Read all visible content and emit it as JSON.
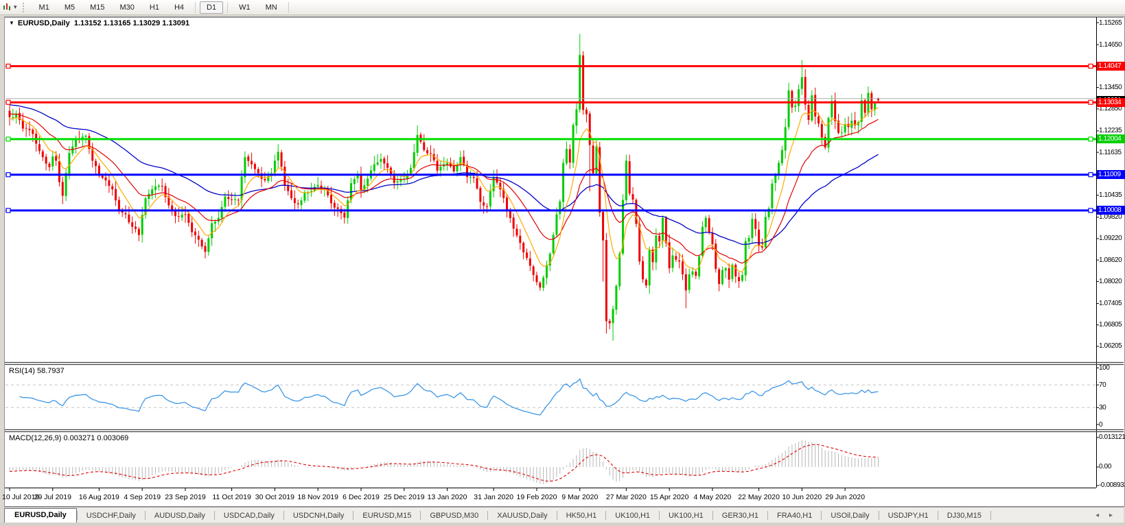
{
  "toolbar": {
    "timeframes": [
      "M1",
      "M5",
      "M15",
      "M30",
      "H1",
      "H4",
      "D1",
      "W1",
      "MN"
    ],
    "active_timeframe": "D1",
    "chart_icon": "chart-type-icon",
    "caret_icon": "dropdown-caret-icon"
  },
  "chart": {
    "symbol": "EURUSD,Daily",
    "ohlc_text": "1.13152 1.13165 1.13029 1.13091",
    "collapse_triangle": "▼"
  },
  "rsi": {
    "label": "RSI(14)",
    "value": "58.7937",
    "axis": [
      "100",
      "70",
      "30",
      "0"
    ]
  },
  "macd": {
    "label": "MACD(12,26,9)",
    "values": "0.003271 0.003069",
    "axis_top": "0.013121",
    "axis_mid": "0.00",
    "axis_bottom": "-0.008933"
  },
  "price_axis": {
    "ticks": [
      {
        "t": "1.15265",
        "p": 1.15265
      },
      {
        "t": "1.14650",
        "p": 1.1465
      },
      {
        "t": "1.13450",
        "p": 1.1345
      },
      {
        "t": "1.12850",
        "p": 1.1285
      },
      {
        "t": "1.12235",
        "p": 1.12235
      },
      {
        "t": "1.11635",
        "p": 1.11635
      },
      {
        "t": "1.10435",
        "p": 1.10435
      },
      {
        "t": "1.09820",
        "p": 1.0982
      },
      {
        "t": "1.09220",
        "p": 1.0922
      },
      {
        "t": "1.08620",
        "p": 1.0862
      },
      {
        "t": "1.08020",
        "p": 1.0802
      },
      {
        "t": "1.07405",
        "p": 1.07405
      },
      {
        "t": "1.06805",
        "p": 1.06805
      },
      {
        "t": "1.06205",
        "p": 1.06205
      }
    ],
    "badges": [
      {
        "t": "1.13091",
        "p": 1.13091,
        "bg": "#000000",
        "z": 3
      },
      {
        "t": "1.14047",
        "p": 1.14047,
        "bg": "#ff0000",
        "z": 4
      },
      {
        "t": "1.13034",
        "p": 1.13034,
        "bg": "#ff0000",
        "z": 4
      },
      {
        "t": "1.12004",
        "p": 1.12004,
        "bg": "#00d000",
        "z": 4
      },
      {
        "t": "1.11009",
        "p": 1.11009,
        "bg": "#0000ff",
        "z": 4
      },
      {
        "t": "1.10008",
        "p": 1.10008,
        "bg": "#0000ff",
        "z": 4
      }
    ]
  },
  "tabs": {
    "items": [
      "EURUSD,Daily",
      "USDCHF,Daily",
      "AUDUSD,Daily",
      "USDCAD,Daily",
      "USDCNH,Daily",
      "EURUSD,M15",
      "GBPUSD,M30",
      "XAUUSD,Daily",
      "HK50,H1",
      "UK100,H1",
      "UK100,H1",
      "GER30,H1",
      "FRA40,H1",
      "USOil,Daily",
      "USDJPY,H1",
      "DJ30,M15"
    ],
    "active_index": 0,
    "arrows": "◂ ▸"
  },
  "colors": {
    "up": "#00cc00",
    "down": "#ee0000",
    "ma_fast": "#ffa800",
    "ma_mid": "#e00000",
    "ma_slow": "#0000c8",
    "rsi_line": "#3c96e8",
    "rsi_level": "#c4c4c4",
    "macd_hist": "#b6b6b6",
    "macd_signal": "#e00000",
    "hline_red": "#ff0000",
    "hline_green": "#00dd00",
    "hline_blue": "#0000ff",
    "ask_line": "#ababab"
  },
  "chart_data": {
    "type": "candlestick",
    "symbol": "EURUSD",
    "timeframe": "Daily",
    "current_bar": {
      "open": 1.13152,
      "high": 1.13165,
      "low": 1.13029,
      "close": 1.13091
    },
    "bar_count": 263,
    "y_axis": {
      "min": 1.06205,
      "max": 1.15265
    },
    "x_labels": [
      {
        "i": 0,
        "t": "10 Jul 2019"
      },
      {
        "i": 13,
        "t": "29 Jul 2019"
      },
      {
        "i": 27,
        "t": "16 Aug 2019"
      },
      {
        "i": 40,
        "t": "4 Sep 2019"
      },
      {
        "i": 53,
        "t": "23 Sep 2019"
      },
      {
        "i": 67,
        "t": "11 Oct 2019"
      },
      {
        "i": 80,
        "t": "30 Oct 2019"
      },
      {
        "i": 93,
        "t": "18 Nov 2019"
      },
      {
        "i": 106,
        "t": "6 Dec 2019"
      },
      {
        "i": 119,
        "t": "25 Dec 2019"
      },
      {
        "i": 132,
        "t": "13 Jan 2020"
      },
      {
        "i": 146,
        "t": "31 Jan 2020"
      },
      {
        "i": 159,
        "t": "19 Feb 2020"
      },
      {
        "i": 172,
        "t": "9 Mar 2020"
      },
      {
        "i": 186,
        "t": "27 Mar 2020"
      },
      {
        "i": 199,
        "t": "15 Apr 2020"
      },
      {
        "i": 212,
        "t": "4 May 2020"
      },
      {
        "i": 226,
        "t": "22 May 2020"
      },
      {
        "i": 239,
        "t": "10 Jun 2020"
      },
      {
        "i": 252,
        "t": "29 Jun 2020"
      }
    ],
    "horizontal_lines": [
      {
        "price": 1.14047,
        "color": "#ff0000"
      },
      {
        "price": 1.13034,
        "color": "#ff0000"
      },
      {
        "price": 1.12004,
        "color": "#00dd00"
      },
      {
        "price": 1.11009,
        "color": "#0000ff"
      },
      {
        "price": 1.10008,
        "color": "#0000ff"
      }
    ],
    "ask_line_price": 1.13091,
    "close_anchors": [
      [
        0,
        1.1262
      ],
      [
        2,
        1.1272
      ],
      [
        4,
        1.123
      ],
      [
        7,
        1.1215
      ],
      [
        10,
        1.115
      ],
      [
        12,
        1.1122
      ],
      [
        13,
        1.1152
      ],
      [
        14,
        1.114
      ],
      [
        15,
        1.108
      ],
      [
        16,
        1.1042
      ],
      [
        18,
        1.1162
      ],
      [
        20,
        1.12
      ],
      [
        23,
        1.121
      ],
      [
        25,
        1.114
      ],
      [
        27,
        1.1098
      ],
      [
        29,
        1.1085
      ],
      [
        31,
        1.106
      ],
      [
        33,
        1.1
      ],
      [
        35,
        1.099
      ],
      [
        37,
        1.0955
      ],
      [
        39,
        1.0932
      ],
      [
        41,
        1.1035
      ],
      [
        43,
        1.106
      ],
      [
        46,
        1.1068
      ],
      [
        48,
        1.1015
      ],
      [
        50,
        1.0985
      ],
      [
        53,
        1.099
      ],
      [
        55,
        1.094
      ],
      [
        58,
        1.09
      ],
      [
        59,
        1.0885
      ],
      [
        61,
        1.0965
      ],
      [
        63,
        1.098
      ],
      [
        65,
        1.104
      ],
      [
        67,
        1.103
      ],
      [
        69,
        1.103
      ],
      [
        71,
        1.115
      ],
      [
        73,
        1.113
      ],
      [
        75,
        1.1105
      ],
      [
        77,
        1.1085
      ],
      [
        79,
        1.1105
      ],
      [
        81,
        1.1165
      ],
      [
        83,
        1.107
      ],
      [
        85,
        1.1035
      ],
      [
        87,
        1.1018
      ],
      [
        89,
        1.105
      ],
      [
        91,
        1.1055
      ],
      [
        93,
        1.1072
      ],
      [
        95,
        1.106
      ],
      [
        97,
        1.1021
      ],
      [
        99,
        1.1005
      ],
      [
        101,
        1.0981
      ],
      [
        103,
        1.1077
      ],
      [
        105,
        1.11
      ],
      [
        106,
        1.1058
      ],
      [
        108,
        1.109
      ],
      [
        110,
        1.113
      ],
      [
        112,
        1.1145
      ],
      [
        114,
        1.112
      ],
      [
        116,
        1.1078
      ],
      [
        118,
        1.1088
      ],
      [
        119,
        1.109
      ],
      [
        121,
        1.112
      ],
      [
        123,
        1.1212
      ],
      [
        125,
        1.117
      ],
      [
        127,
        1.116
      ],
      [
        129,
        1.1112
      ],
      [
        131,
        1.113
      ],
      [
        132,
        1.1134
      ],
      [
        134,
        1.111
      ],
      [
        136,
        1.115
      ],
      [
        138,
        1.1095
      ],
      [
        140,
        1.1092
      ],
      [
        142,
        1.1025
      ],
      [
        144,
        1.1011
      ],
      [
        146,
        1.1094
      ],
      [
        148,
        1.106
      ],
      [
        150,
        1.0999
      ],
      [
        152,
        1.095
      ],
      [
        154,
        1.091
      ],
      [
        156,
        1.0868
      ],
      [
        158,
        1.082
      ],
      [
        159,
        1.08
      ],
      [
        160,
        1.0785
      ],
      [
        162,
        1.0848
      ],
      [
        163,
        1.088
      ],
      [
        165,
        1.099
      ],
      [
        166,
        1.1026
      ],
      [
        167,
        1.1134
      ],
      [
        168,
        1.1173
      ],
      [
        169,
        1.1135
      ],
      [
        170,
        1.124
      ],
      [
        171,
        1.1284
      ],
      [
        172,
        1.1436
      ],
      [
        173,
        1.1282
      ],
      [
        174,
        1.127
      ],
      [
        175,
        1.1184
      ],
      [
        176,
        1.1105
      ],
      [
        177,
        1.118
      ],
      [
        178,
        1.0995
      ],
      [
        179,
        1.0917
      ],
      [
        180,
        1.0691
      ],
      [
        181,
        1.0685
      ],
      [
        182,
        1.0725
      ],
      [
        183,
        1.079
      ],
      [
        184,
        1.088
      ],
      [
        185,
        1.103
      ],
      [
        186,
        1.114
      ],
      [
        187,
        1.1048
      ],
      [
        188,
        1.1031
      ],
      [
        189,
        1.0963
      ],
      [
        190,
        1.0858
      ],
      [
        191,
        1.0808
      ],
      [
        192,
        1.0791
      ],
      [
        193,
        1.089
      ],
      [
        194,
        1.0856
      ],
      [
        195,
        1.093
      ],
      [
        196,
        1.0914
      ],
      [
        197,
        1.098
      ],
      [
        198,
        1.091
      ],
      [
        199,
        1.0839
      ],
      [
        200,
        1.0875
      ],
      [
        201,
        1.0863
      ],
      [
        202,
        1.0858
      ],
      [
        203,
        1.0822
      ],
      [
        204,
        1.0777
      ],
      [
        205,
        1.0822
      ],
      [
        206,
        1.083
      ],
      [
        207,
        1.0818
      ],
      [
        208,
        1.0872
      ],
      [
        209,
        1.0955
      ],
      [
        210,
        1.098
      ],
      [
        212,
        1.0906
      ],
      [
        213,
        1.0837
      ],
      [
        214,
        1.0795
      ],
      [
        215,
        1.0834
      ],
      [
        216,
        1.0839
      ],
      [
        217,
        1.0807
      ],
      [
        218,
        1.0849
      ],
      [
        219,
        1.0816
      ],
      [
        220,
        1.0803
      ],
      [
        221,
        1.082
      ],
      [
        222,
        1.0915
      ],
      [
        223,
        1.0924
      ],
      [
        224,
        1.0977
      ],
      [
        225,
        1.0949
      ],
      [
        226,
        1.0901
      ],
      [
        227,
        1.0897
      ],
      [
        228,
        1.0983
      ],
      [
        229,
        1.1006
      ],
      [
        230,
        1.1076
      ],
      [
        231,
        1.1101
      ],
      [
        232,
        1.1134
      ],
      [
        233,
        1.117
      ],
      [
        234,
        1.1234
      ],
      [
        235,
        1.1337
      ],
      [
        236,
        1.1289
      ],
      [
        237,
        1.1294
      ],
      [
        238,
        1.134
      ],
      [
        239,
        1.1374
      ],
      [
        240,
        1.1297
      ],
      [
        241,
        1.1254
      ],
      [
        242,
        1.1323
      ],
      [
        243,
        1.1264
      ],
      [
        244,
        1.1244
      ],
      [
        245,
        1.1205
      ],
      [
        246,
        1.1177
      ],
      [
        247,
        1.126
      ],
      [
        248,
        1.1307
      ],
      [
        249,
        1.1251
      ],
      [
        250,
        1.1218
      ],
      [
        251,
        1.1219
      ],
      [
        252,
        1.1242
      ],
      [
        253,
        1.1234
      ],
      [
        254,
        1.1252
      ],
      [
        255,
        1.1239
      ],
      [
        256,
        1.1248
      ],
      [
        257,
        1.1309
      ],
      [
        258,
        1.1274
      ],
      [
        259,
        1.133
      ],
      [
        260,
        1.1284
      ],
      [
        261,
        1.13
      ],
      [
        262,
        1.13091
      ]
    ],
    "extremes": {
      "16": {
        "l": 1.1027
      },
      "39": {
        "l": 1.0926
      },
      "59": {
        "l": 1.0879
      },
      "123": {
        "h": 1.1239
      },
      "160": {
        "l": 1.0778
      },
      "172": {
        "h": 1.1495
      },
      "175": {
        "l": 1.1054
      },
      "179": {
        "l": 1.0802
      },
      "180": {
        "l": 1.0656
      },
      "182": {
        "l": 1.0636
      },
      "204": {
        "l": 1.0727
      },
      "239": {
        "h": 1.1422
      },
      "262": {
        "o": 1.13152,
        "h": 1.13165,
        "l": 1.13029,
        "c": 1.13091
      }
    },
    "indicators": {
      "moving_averages": [
        {
          "period": 8,
          "color": "#ffa800"
        },
        {
          "period": 21,
          "color": "#e00000"
        },
        {
          "period": 55,
          "color": "#0000c8"
        }
      ],
      "rsi": {
        "period": 14,
        "last": 58.7937,
        "levels": [
          30,
          70
        ],
        "range": [
          0,
          100
        ]
      },
      "macd": {
        "fast": 12,
        "slow": 26,
        "signal": 9,
        "last_main": 0.003271,
        "last_signal": 0.003069,
        "axis_max": 0.013121,
        "axis_min": -0.008933
      }
    }
  }
}
